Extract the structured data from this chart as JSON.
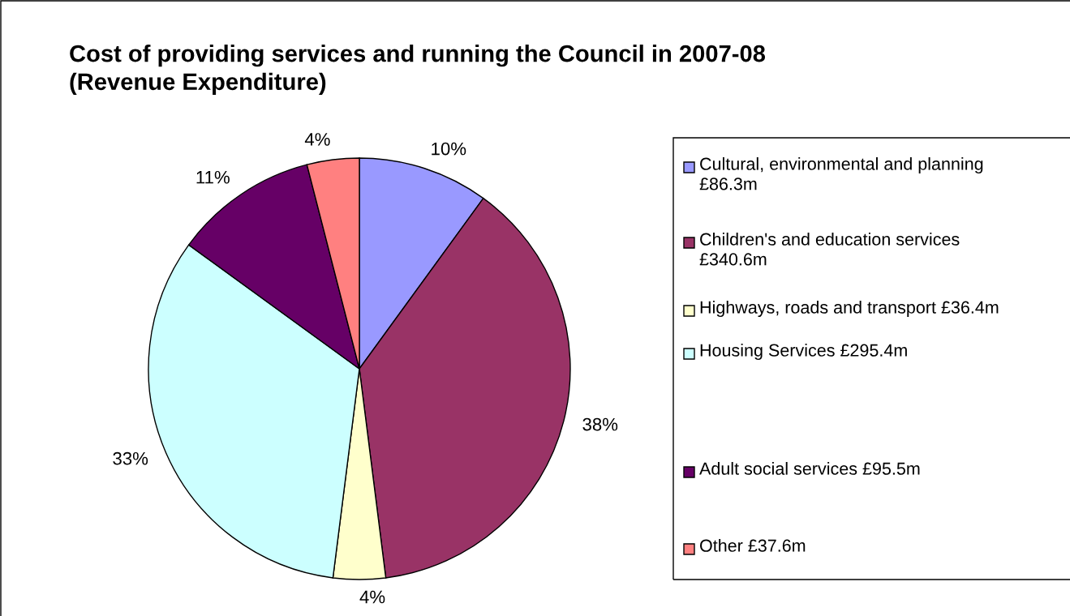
{
  "chart_data": {
    "type": "pie",
    "title": "Cost of providing services and running the Council in 2007-08 (Revenue Expenditure)",
    "categories": [
      "Cultural, environmental and planning £86.3m",
      "Children's and education services £340.6m",
      "Highways, roads and transport £36.4m",
      "Housing Services £295.4m",
      "Adult social services £95.5m",
      "Other £37.6m"
    ],
    "values": [
      10,
      38,
      4,
      33,
      11,
      4
    ],
    "value_labels": [
      "10%",
      "38%",
      "4%",
      "33%",
      "11%",
      "4%"
    ],
    "colors": [
      "#9999ff",
      "#993366",
      "#ffffcc",
      "#ccffff",
      "#660066",
      "#ff8080"
    ],
    "legend": "right"
  }
}
